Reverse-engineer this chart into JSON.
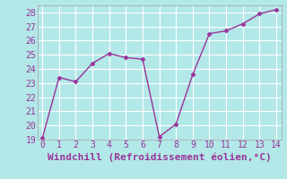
{
  "x": [
    0,
    1,
    2,
    3,
    4,
    5,
    6,
    7,
    8,
    9,
    10,
    11,
    12,
    13,
    14
  ],
  "y": [
    19.1,
    23.4,
    23.1,
    24.4,
    25.1,
    24.8,
    24.7,
    19.2,
    20.1,
    23.6,
    26.5,
    26.7,
    27.2,
    27.9,
    28.2
  ],
  "line_color": "#993399",
  "marker": "D",
  "marker_size": 2.5,
  "line_width": 1,
  "xlabel": "Windchill (Refroidissement éolien,°C)",
  "xlabel_fontsize": 8,
  "ylim": [
    19,
    28.5
  ],
  "xlim": [
    -0.3,
    14.3
  ],
  "yticks": [
    19,
    20,
    21,
    22,
    23,
    24,
    25,
    26,
    27,
    28
  ],
  "xticks": [
    0,
    1,
    2,
    3,
    4,
    5,
    6,
    7,
    8,
    9,
    10,
    11,
    12,
    13,
    14
  ],
  "background_color": "#b2e8e8",
  "grid_color": "#ffffff",
  "tick_fontsize": 7,
  "tick_color": "#993399",
  "label_color": "#993399",
  "spine_color": "#aaaaaa"
}
